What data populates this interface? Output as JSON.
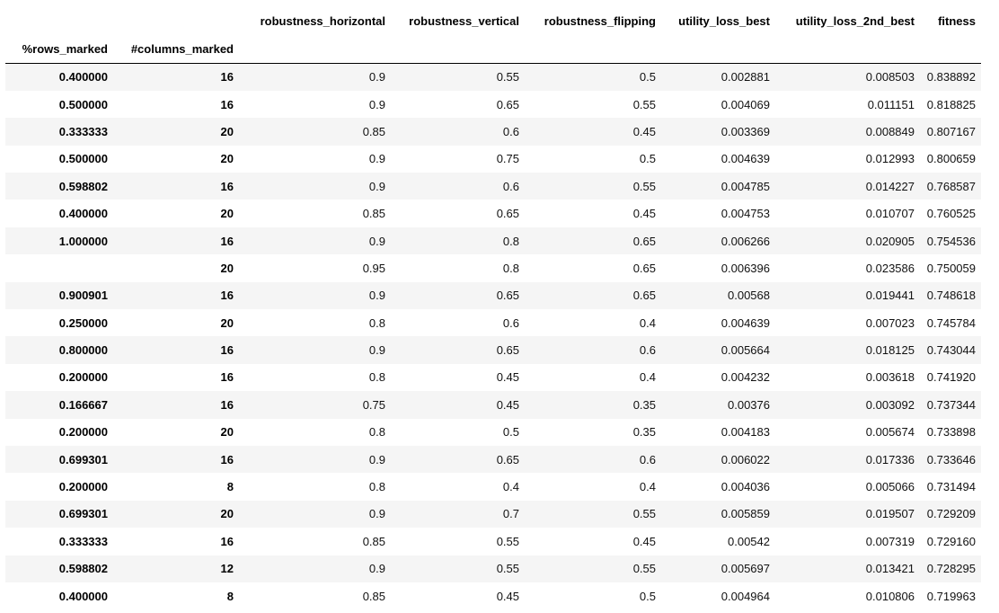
{
  "columns": [
    "robustness_horizontal",
    "robustness_vertical",
    "robustness_flipping",
    "utility_loss_best",
    "utility_loss_2nd_best",
    "fitness"
  ],
  "index_names": [
    "%rows_marked",
    "#columns_marked"
  ],
  "rows": [
    {
      "rows_marked": "0.400000",
      "columns_marked": "16",
      "values": [
        "0.9",
        "0.55",
        "0.5",
        "0.002881",
        "0.008503",
        "0.838892"
      ]
    },
    {
      "rows_marked": "0.500000",
      "columns_marked": "16",
      "values": [
        "0.9",
        "0.65",
        "0.55",
        "0.004069",
        "0.011151",
        "0.818825"
      ]
    },
    {
      "rows_marked": "0.333333",
      "columns_marked": "20",
      "values": [
        "0.85",
        "0.6",
        "0.45",
        "0.003369",
        "0.008849",
        "0.807167"
      ]
    },
    {
      "rows_marked": "0.500000",
      "columns_marked": "20",
      "values": [
        "0.9",
        "0.75",
        "0.5",
        "0.004639",
        "0.012993",
        "0.800659"
      ]
    },
    {
      "rows_marked": "0.598802",
      "columns_marked": "16",
      "values": [
        "0.9",
        "0.6",
        "0.55",
        "0.004785",
        "0.014227",
        "0.768587"
      ]
    },
    {
      "rows_marked": "0.400000",
      "columns_marked": "20",
      "values": [
        "0.85",
        "0.65",
        "0.45",
        "0.004753",
        "0.010707",
        "0.760525"
      ]
    },
    {
      "rows_marked": "1.000000",
      "columns_marked": "16",
      "values": [
        "0.9",
        "0.8",
        "0.65",
        "0.006266",
        "0.020905",
        "0.754536"
      ]
    },
    {
      "rows_marked": "",
      "columns_marked": "20",
      "values": [
        "0.95",
        "0.8",
        "0.65",
        "0.006396",
        "0.023586",
        "0.750059"
      ]
    },
    {
      "rows_marked": "0.900901",
      "columns_marked": "16",
      "values": [
        "0.9",
        "0.65",
        "0.65",
        "0.00568",
        "0.019441",
        "0.748618"
      ]
    },
    {
      "rows_marked": "0.250000",
      "columns_marked": "20",
      "values": [
        "0.8",
        "0.6",
        "0.4",
        "0.004639",
        "0.007023",
        "0.745784"
      ]
    },
    {
      "rows_marked": "0.800000",
      "columns_marked": "16",
      "values": [
        "0.9",
        "0.65",
        "0.6",
        "0.005664",
        "0.018125",
        "0.743044"
      ]
    },
    {
      "rows_marked": "0.200000",
      "columns_marked": "16",
      "values": [
        "0.8",
        "0.45",
        "0.4",
        "0.004232",
        "0.003618",
        "0.741920"
      ]
    },
    {
      "rows_marked": "0.166667",
      "columns_marked": "16",
      "values": [
        "0.75",
        "0.45",
        "0.35",
        "0.00376",
        "0.003092",
        "0.737344"
      ]
    },
    {
      "rows_marked": "0.200000",
      "columns_marked": "20",
      "values": [
        "0.8",
        "0.5",
        "0.35",
        "0.004183",
        "0.005674",
        "0.733898"
      ]
    },
    {
      "rows_marked": "0.699301",
      "columns_marked": "16",
      "values": [
        "0.9",
        "0.65",
        "0.6",
        "0.006022",
        "0.017336",
        "0.733646"
      ]
    },
    {
      "rows_marked": "0.200000",
      "columns_marked": "8",
      "values": [
        "0.8",
        "0.4",
        "0.4",
        "0.004036",
        "0.005066",
        "0.731494"
      ]
    },
    {
      "rows_marked": "0.699301",
      "columns_marked": "20",
      "values": [
        "0.9",
        "0.7",
        "0.55",
        "0.005859",
        "0.019507",
        "0.729209"
      ]
    },
    {
      "rows_marked": "0.333333",
      "columns_marked": "16",
      "values": [
        "0.85",
        "0.55",
        "0.45",
        "0.00542",
        "0.007319",
        "0.729160"
      ]
    },
    {
      "rows_marked": "0.598802",
      "columns_marked": "12",
      "values": [
        "0.9",
        "0.55",
        "0.55",
        "0.005697",
        "0.013421",
        "0.728295"
      ]
    },
    {
      "rows_marked": "0.400000",
      "columns_marked": "8",
      "values": [
        "0.85",
        "0.45",
        "0.5",
        "0.004964",
        "0.010806",
        "0.719963"
      ]
    }
  ]
}
